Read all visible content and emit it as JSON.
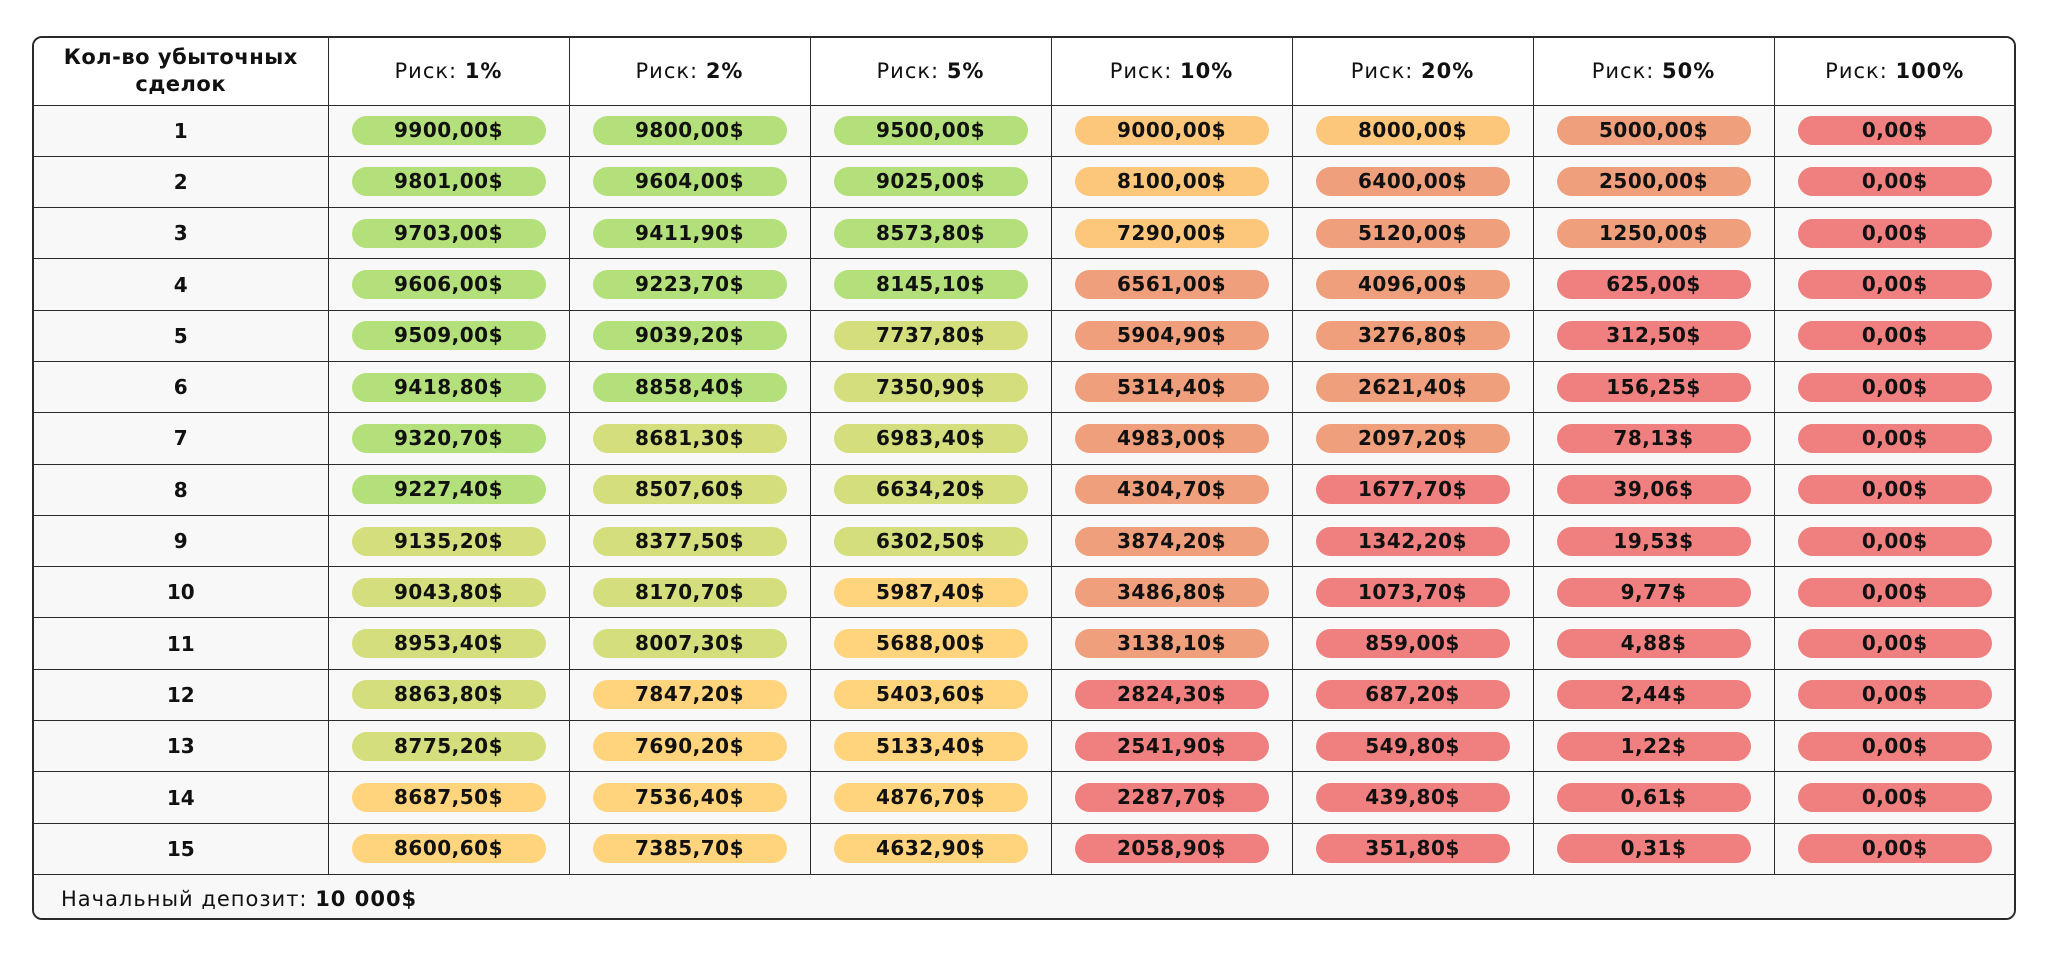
{
  "table": {
    "first_header": "Кол-во убыточных сделок",
    "risk_prefix": "Риск: ",
    "risk_levels": [
      "1%",
      "2%",
      "5%",
      "10%",
      "20%",
      "50%",
      "100%"
    ],
    "colors": {
      "green": "#b3e07a",
      "lime": "#d4de7c",
      "yellow": "#ffd47c",
      "orange": "#fdc77b",
      "salmon": "#ef9f7c",
      "red": "#f07f7f"
    },
    "rows": [
      {
        "n": "1",
        "cells": [
          {
            "v": "9900,00$",
            "c": "green"
          },
          {
            "v": "9800,00$",
            "c": "green"
          },
          {
            "v": "9500,00$",
            "c": "green"
          },
          {
            "v": "9000,00$",
            "c": "orange"
          },
          {
            "v": "8000,00$",
            "c": "orange"
          },
          {
            "v": "5000,00$",
            "c": "salmon"
          },
          {
            "v": "0,00$",
            "c": "red"
          }
        ]
      },
      {
        "n": "2",
        "cells": [
          {
            "v": "9801,00$",
            "c": "green"
          },
          {
            "v": "9604,00$",
            "c": "green"
          },
          {
            "v": "9025,00$",
            "c": "green"
          },
          {
            "v": "8100,00$",
            "c": "orange"
          },
          {
            "v": "6400,00$",
            "c": "salmon"
          },
          {
            "v": "2500,00$",
            "c": "salmon"
          },
          {
            "v": "0,00$",
            "c": "red"
          }
        ]
      },
      {
        "n": "3",
        "cells": [
          {
            "v": "9703,00$",
            "c": "green"
          },
          {
            "v": "9411,90$",
            "c": "green"
          },
          {
            "v": "8573,80$",
            "c": "green"
          },
          {
            "v": "7290,00$",
            "c": "orange"
          },
          {
            "v": "5120,00$",
            "c": "salmon"
          },
          {
            "v": "1250,00$",
            "c": "salmon"
          },
          {
            "v": "0,00$",
            "c": "red"
          }
        ]
      },
      {
        "n": "4",
        "cells": [
          {
            "v": "9606,00$",
            "c": "green"
          },
          {
            "v": "9223,70$",
            "c": "green"
          },
          {
            "v": "8145,10$",
            "c": "green"
          },
          {
            "v": "6561,00$",
            "c": "salmon"
          },
          {
            "v": "4096,00$",
            "c": "salmon"
          },
          {
            "v": "625,00$",
            "c": "red"
          },
          {
            "v": "0,00$",
            "c": "red"
          }
        ]
      },
      {
        "n": "5",
        "cells": [
          {
            "v": "9509,00$",
            "c": "green"
          },
          {
            "v": "9039,20$",
            "c": "green"
          },
          {
            "v": "7737,80$",
            "c": "lime"
          },
          {
            "v": "5904,90$",
            "c": "salmon"
          },
          {
            "v": "3276,80$",
            "c": "salmon"
          },
          {
            "v": "312,50$",
            "c": "red"
          },
          {
            "v": "0,00$",
            "c": "red"
          }
        ]
      },
      {
        "n": "6",
        "cells": [
          {
            "v": "9418,80$",
            "c": "green"
          },
          {
            "v": "8858,40$",
            "c": "green"
          },
          {
            "v": "7350,90$",
            "c": "lime"
          },
          {
            "v": "5314,40$",
            "c": "salmon"
          },
          {
            "v": "2621,40$",
            "c": "salmon"
          },
          {
            "v": "156,25$",
            "c": "red"
          },
          {
            "v": "0,00$",
            "c": "red"
          }
        ]
      },
      {
        "n": "7",
        "cells": [
          {
            "v": "9320,70$",
            "c": "green"
          },
          {
            "v": "8681,30$",
            "c": "lime"
          },
          {
            "v": "6983,40$",
            "c": "lime"
          },
          {
            "v": "4983,00$",
            "c": "salmon"
          },
          {
            "v": "2097,20$",
            "c": "salmon"
          },
          {
            "v": "78,13$",
            "c": "red"
          },
          {
            "v": "0,00$",
            "c": "red"
          }
        ]
      },
      {
        "n": "8",
        "cells": [
          {
            "v": "9227,40$",
            "c": "green"
          },
          {
            "v": "8507,60$",
            "c": "lime"
          },
          {
            "v": "6634,20$",
            "c": "lime"
          },
          {
            "v": "4304,70$",
            "c": "salmon"
          },
          {
            "v": "1677,70$",
            "c": "red"
          },
          {
            "v": "39,06$",
            "c": "red"
          },
          {
            "v": "0,00$",
            "c": "red"
          }
        ]
      },
      {
        "n": "9",
        "cells": [
          {
            "v": "9135,20$",
            "c": "lime"
          },
          {
            "v": "8377,50$",
            "c": "lime"
          },
          {
            "v": "6302,50$",
            "c": "lime"
          },
          {
            "v": "3874,20$",
            "c": "salmon"
          },
          {
            "v": "1342,20$",
            "c": "red"
          },
          {
            "v": "19,53$",
            "c": "red"
          },
          {
            "v": "0,00$",
            "c": "red"
          }
        ]
      },
      {
        "n": "10",
        "cells": [
          {
            "v": "9043,80$",
            "c": "lime"
          },
          {
            "v": "8170,70$",
            "c": "lime"
          },
          {
            "v": "5987,40$",
            "c": "yellow"
          },
          {
            "v": "3486,80$",
            "c": "salmon"
          },
          {
            "v": "1073,70$",
            "c": "red"
          },
          {
            "v": "9,77$",
            "c": "red"
          },
          {
            "v": "0,00$",
            "c": "red"
          }
        ]
      },
      {
        "n": "11",
        "cells": [
          {
            "v": "8953,40$",
            "c": "lime"
          },
          {
            "v": "8007,30$",
            "c": "lime"
          },
          {
            "v": "5688,00$",
            "c": "yellow"
          },
          {
            "v": "3138,10$",
            "c": "salmon"
          },
          {
            "v": "859,00$",
            "c": "red"
          },
          {
            "v": "4,88$",
            "c": "red"
          },
          {
            "v": "0,00$",
            "c": "red"
          }
        ]
      },
      {
        "n": "12",
        "cells": [
          {
            "v": "8863,80$",
            "c": "lime"
          },
          {
            "v": "7847,20$",
            "c": "yellow"
          },
          {
            "v": "5403,60$",
            "c": "yellow"
          },
          {
            "v": "2824,30$",
            "c": "red"
          },
          {
            "v": "687,20$",
            "c": "red"
          },
          {
            "v": "2,44$",
            "c": "red"
          },
          {
            "v": "0,00$",
            "c": "red"
          }
        ]
      },
      {
        "n": "13",
        "cells": [
          {
            "v": "8775,20$",
            "c": "lime"
          },
          {
            "v": "7690,20$",
            "c": "yellow"
          },
          {
            "v": "5133,40$",
            "c": "yellow"
          },
          {
            "v": "2541,90$",
            "c": "red"
          },
          {
            "v": "549,80$",
            "c": "red"
          },
          {
            "v": "1,22$",
            "c": "red"
          },
          {
            "v": "0,00$",
            "c": "red"
          }
        ]
      },
      {
        "n": "14",
        "cells": [
          {
            "v": "8687,50$",
            "c": "yellow"
          },
          {
            "v": "7536,40$",
            "c": "yellow"
          },
          {
            "v": "4876,70$",
            "c": "yellow"
          },
          {
            "v": "2287,70$",
            "c": "red"
          },
          {
            "v": "439,80$",
            "c": "red"
          },
          {
            "v": "0,61$",
            "c": "red"
          },
          {
            "v": "0,00$",
            "c": "red"
          }
        ]
      },
      {
        "n": "15",
        "cells": [
          {
            "v": "8600,60$",
            "c": "yellow"
          },
          {
            "v": "7385,70$",
            "c": "yellow"
          },
          {
            "v": "4632,90$",
            "c": "yellow"
          },
          {
            "v": "2058,90$",
            "c": "red"
          },
          {
            "v": "351,80$",
            "c": "red"
          },
          {
            "v": "0,31$",
            "c": "red"
          },
          {
            "v": "0,00$",
            "c": "red"
          }
        ]
      }
    ],
    "footer_label": "Начальный депозит: ",
    "footer_value": "10 000$"
  }
}
